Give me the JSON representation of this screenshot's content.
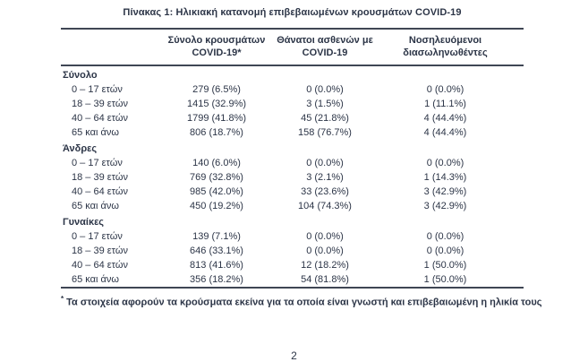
{
  "title": "Πίνακας 1: Ηλικιακή κατανομή επιβεβαιωμένων κρουσμάτων COVID-19",
  "table": {
    "headers": [
      {
        "line1": "Σύνολο κρουσμάτων",
        "line2": "COVID-19*"
      },
      {
        "line1": "Θάνατοι ασθενών με",
        "line2": "COVID-19"
      },
      {
        "line1": "Νοσηλευόμενοι",
        "line2": "διασωληνωθέντες"
      }
    ],
    "sections": [
      {
        "label": "Σύνολο",
        "rows": [
          {
            "label": "0 – 17 ετών",
            "cases": "279 (6.5%)",
            "deaths": "0 (0.0%)",
            "intubated": "0 (0.0%)"
          },
          {
            "label": "18 – 39 ετών",
            "cases": "1415 (32.9%)",
            "deaths": "3 (1.5%)",
            "intubated": "1 (11.1%)"
          },
          {
            "label": "40 – 64 ετών",
            "cases": "1799 (41.8%)",
            "deaths": "45 (21.8%)",
            "intubated": "4 (44.4%)"
          },
          {
            "label": "65 και άνω",
            "cases": "806 (18.7%)",
            "deaths": "158 (76.7%)",
            "intubated": "4 (44.4%)"
          }
        ]
      },
      {
        "label": "Άνδρες",
        "rows": [
          {
            "label": "0 – 17 ετών",
            "cases": "140 (6.0%)",
            "deaths": "0 (0.0%)",
            "intubated": "0 (0.0%)"
          },
          {
            "label": "18 – 39 ετών",
            "cases": "769 (32.8%)",
            "deaths": "3 (2.1%)",
            "intubated": "1 (14.3%)"
          },
          {
            "label": "40 – 64 ετών",
            "cases": "985 (42.0%)",
            "deaths": "33 (23.6%)",
            "intubated": "3 (42.9%)"
          },
          {
            "label": "65 και άνω",
            "cases": "450 (19.2%)",
            "deaths": "104 (74.3%)",
            "intubated": "3 (42.9%)"
          }
        ]
      },
      {
        "label": "Γυναίκες",
        "rows": [
          {
            "label": "0 – 17 ετών",
            "cases": "139 (7.1%)",
            "deaths": "0 (0.0%)",
            "intubated": "0 (0.0%)"
          },
          {
            "label": "18 – 39 ετών",
            "cases": "646 (33.1%)",
            "deaths": "0 (0.0%)",
            "intubated": "0 (0.0%)"
          },
          {
            "label": "40 – 64 ετών",
            "cases": "813 (41.6%)",
            "deaths": "12 (18.2%)",
            "intubated": "1 (50.0%)"
          },
          {
            "label": "65 και άνω",
            "cases": "356 (18.2%)",
            "deaths": "54 (81.8%)",
            "intubated": "1 (50.0%)"
          }
        ]
      }
    ],
    "footnote_marker": "*",
    "footnote": "Τα στοιχεία αφορούν τα κρούσματα εκείνα για τα οποία είναι γνωστή και επιβεβαιωμένη η ηλικία τους"
  },
  "page_number": "2",
  "colors": {
    "text": "#2c3547",
    "rule": "#3f4654",
    "background": "#ffffff"
  }
}
